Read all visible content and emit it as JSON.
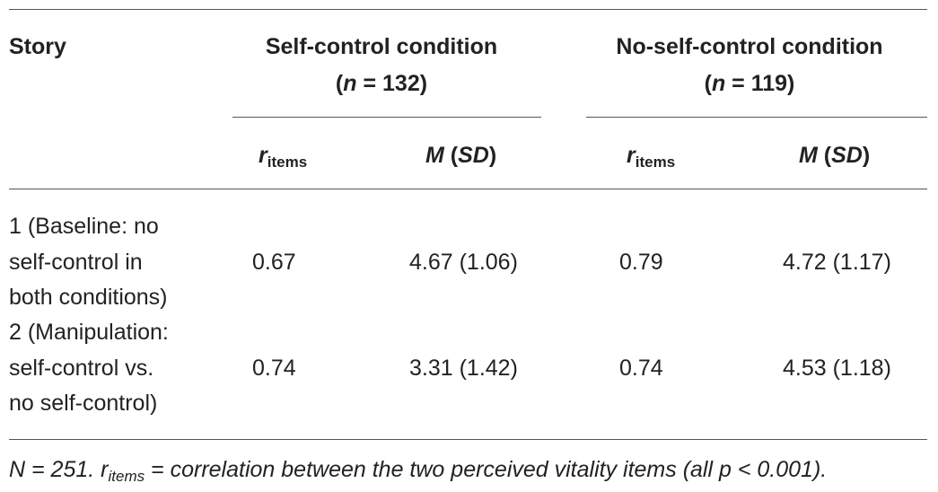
{
  "header": {
    "story": "Story",
    "group1": {
      "title": "Self-control condition",
      "n_prefix": "(",
      "n_var": "n",
      "n_value": " = 132)"
    },
    "group2": {
      "title": "No-self-control condition",
      "n_prefix": "(",
      "n_var": "n",
      "n_value": " = 119)"
    },
    "sub": {
      "r_main": "r",
      "r_sub": "items",
      "m_main": "M",
      "m_open": " (",
      "m_sd": "SD",
      "m_close": ")"
    }
  },
  "rows": [
    {
      "story_lines": [
        "1 (Baseline: no",
        "self-control in",
        "both conditions)"
      ],
      "sc_r": "0.67",
      "sc_m": "4.67 (1.06)",
      "nsc_r": "0.79",
      "nsc_m": "4.72 (1.17)"
    },
    {
      "story_lines": [
        "2 (Manipulation:",
        "self-control vs.",
        "no self-control)"
      ],
      "sc_r": "0.74",
      "sc_m": "3.31 (1.42)",
      "nsc_r": "0.74",
      "nsc_m": "4.53 (1.18)"
    }
  ],
  "note": {
    "n_part": "N = 251. ",
    "r_main": "r",
    "r_sub": "items",
    "rest": " = correlation between the two perceived vitality items (all p < 0.001)."
  }
}
